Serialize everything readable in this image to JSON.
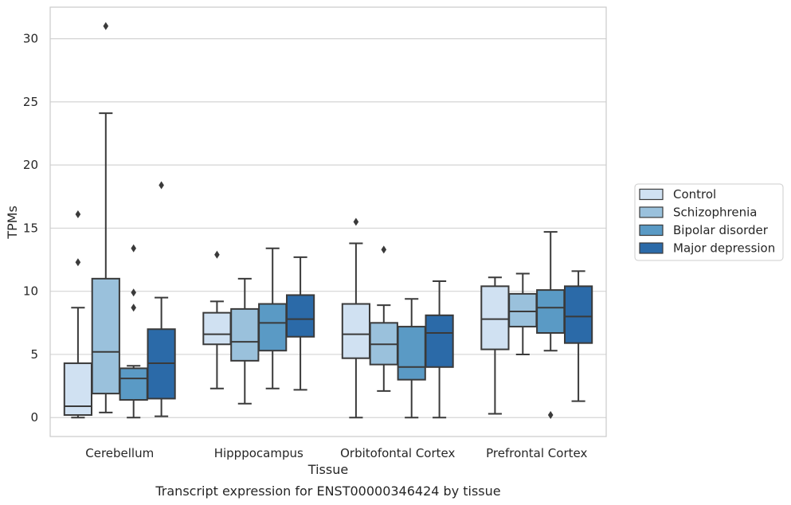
{
  "chart_data": {
    "type": "box",
    "xlabel": "Tissue",
    "ylabel": "TPMs",
    "caption": "Transcript expression for ENST00000346424 by tissue",
    "ylim": [
      -1.5,
      32.5
    ],
    "yticks": [
      0,
      5,
      10,
      15,
      20,
      25,
      30
    ],
    "grid": "horizontal",
    "legend_position": "right",
    "categories": [
      "Cerebellum",
      "Hipppocampus",
      "Orbitofontal Cortex",
      "Prefrontal Cortex"
    ],
    "series": [
      {
        "name": "Control",
        "color": "#d0e1f2",
        "boxes": [
          {
            "whislo": 0.0,
            "q1": 0.2,
            "med": 0.9,
            "q3": 4.3,
            "whishi": 8.7,
            "fliers": [
              12.3,
              16.1
            ]
          },
          {
            "whislo": 2.3,
            "q1": 5.8,
            "med": 6.6,
            "q3": 8.3,
            "whishi": 9.2,
            "fliers": [
              12.9
            ]
          },
          {
            "whislo": 0.0,
            "q1": 4.7,
            "med": 6.6,
            "q3": 9.0,
            "whishi": 13.8,
            "fliers": [
              15.5
            ]
          },
          {
            "whislo": 0.3,
            "q1": 5.4,
            "med": 7.8,
            "q3": 10.4,
            "whishi": 11.1,
            "fliers": []
          }
        ]
      },
      {
        "name": "Schizophrenia",
        "color": "#9ac1dc",
        "boxes": [
          {
            "whislo": 0.4,
            "q1": 1.9,
            "med": 5.2,
            "q3": 11.0,
            "whishi": 24.1,
            "fliers": [
              31.0
            ]
          },
          {
            "whislo": 1.1,
            "q1": 4.5,
            "med": 6.0,
            "q3": 8.6,
            "whishi": 11.0,
            "fliers": []
          },
          {
            "whislo": 2.1,
            "q1": 4.2,
            "med": 5.8,
            "q3": 7.5,
            "whishi": 8.9,
            "fliers": [
              13.3
            ]
          },
          {
            "whislo": 5.0,
            "q1": 7.2,
            "med": 8.4,
            "q3": 9.8,
            "whishi": 11.4,
            "fliers": []
          }
        ]
      },
      {
        "name": "Bipolar disorder",
        "color": "#5a9ac5",
        "boxes": [
          {
            "whislo": 0.0,
            "q1": 1.4,
            "med": 3.1,
            "q3": 3.9,
            "whishi": 4.1,
            "fliers": [
              8.7,
              9.9,
              13.4
            ]
          },
          {
            "whislo": 2.3,
            "q1": 5.3,
            "med": 7.5,
            "q3": 9.0,
            "whishi": 13.4,
            "fliers": []
          },
          {
            "whislo": 0.0,
            "q1": 3.0,
            "med": 4.0,
            "q3": 7.2,
            "whishi": 9.4,
            "fliers": []
          },
          {
            "whislo": 5.3,
            "q1": 6.7,
            "med": 8.7,
            "q3": 10.1,
            "whishi": 14.7,
            "fliers": [
              0.2
            ]
          }
        ]
      },
      {
        "name": "Major depression",
        "color": "#2b6aa8",
        "boxes": [
          {
            "whislo": 0.1,
            "q1": 1.5,
            "med": 4.3,
            "q3": 7.0,
            "whishi": 9.5,
            "fliers": [
              18.4
            ]
          },
          {
            "whislo": 2.2,
            "q1": 6.4,
            "med": 7.8,
            "q3": 9.7,
            "whishi": 12.7,
            "fliers": []
          },
          {
            "whislo": 0.0,
            "q1": 4.0,
            "med": 6.7,
            "q3": 8.1,
            "whishi": 10.8,
            "fliers": []
          },
          {
            "whislo": 1.3,
            "q1": 5.9,
            "med": 8.0,
            "q3": 10.4,
            "whishi": 11.6,
            "fliers": []
          }
        ]
      }
    ]
  }
}
